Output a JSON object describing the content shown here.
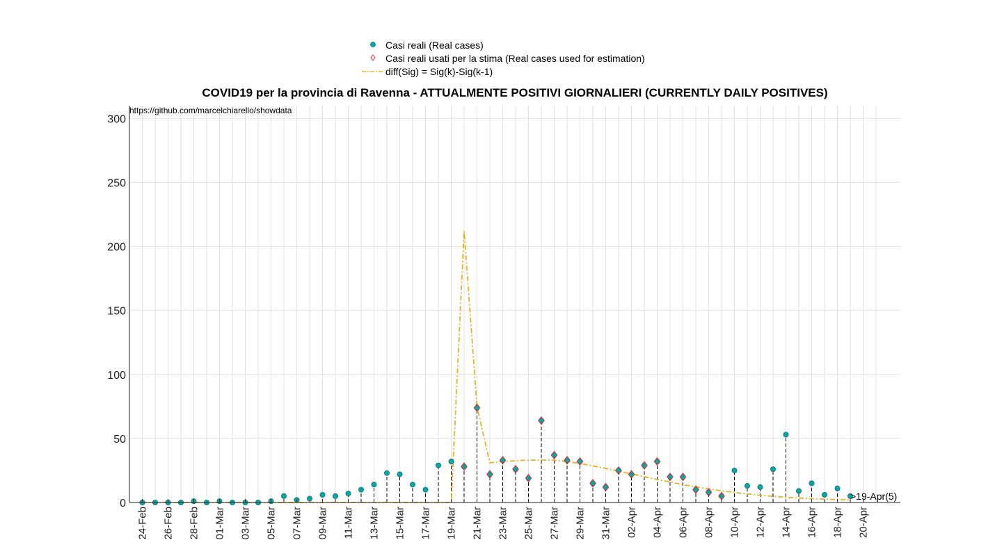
{
  "title": "COVID19 per la provincia di Ravenna - ATTUALMENTE POSITIVI GIORNALIERI (CURRENTLY DAILY POSITIVES)",
  "source_text": "https://github.com/marcelchiarello/showdata",
  "end_annotation": ">19-Apr(5)",
  "legend": {
    "real": "Casi reali (Real cases)",
    "used": "Casi reali usati per la stima (Real cases used for estimation)",
    "diff": "diff(Sig) = Sig(k)-Sig(k-1)"
  },
  "colors": {
    "real_marker": "#0aa5a5",
    "used_marker": "#e23030",
    "diff_line": "#e8b020",
    "grid": "#e2e2e2",
    "stem": "#000000"
  },
  "chart_data": {
    "type": "scatter",
    "ylim": [
      0,
      310
    ],
    "yticks": [
      0,
      50,
      100,
      150,
      200,
      250,
      300
    ],
    "grid": true,
    "legend_placement": "top-center",
    "xtick_labels": [
      "24-Feb",
      "26-Feb",
      "28-Feb",
      "01-Mar",
      "03-Mar",
      "05-Mar",
      "07-Mar",
      "09-Mar",
      "11-Mar",
      "13-Mar",
      "15-Mar",
      "17-Mar",
      "19-Mar",
      "21-Mar",
      "23-Mar",
      "25-Mar",
      "27-Mar",
      "29-Mar",
      "31-Mar",
      "02-Apr",
      "04-Apr",
      "06-Apr",
      "08-Apr",
      "10-Apr",
      "12-Apr",
      "14-Apr",
      "16-Apr",
      "18-Apr",
      "20-Apr"
    ],
    "dates": [
      "24-Feb",
      "25-Feb",
      "26-Feb",
      "27-Feb",
      "28-Feb",
      "29-Feb",
      "01-Mar",
      "02-Mar",
      "03-Mar",
      "04-Mar",
      "05-Mar",
      "06-Mar",
      "07-Mar",
      "08-Mar",
      "09-Mar",
      "10-Mar",
      "11-Mar",
      "12-Mar",
      "13-Mar",
      "14-Mar",
      "15-Mar",
      "16-Mar",
      "17-Mar",
      "18-Mar",
      "19-Mar",
      "20-Mar",
      "21-Mar",
      "22-Mar",
      "23-Mar",
      "24-Mar",
      "25-Mar",
      "26-Mar",
      "27-Mar",
      "28-Mar",
      "29-Mar",
      "30-Mar",
      "31-Mar",
      "01-Apr",
      "02-Apr",
      "03-Apr",
      "04-Apr",
      "05-Apr",
      "06-Apr",
      "07-Apr",
      "08-Apr",
      "09-Apr",
      "10-Apr",
      "11-Apr",
      "12-Apr",
      "13-Apr",
      "14-Apr",
      "15-Apr",
      "16-Apr",
      "17-Apr",
      "18-Apr",
      "19-Apr"
    ],
    "series": [
      {
        "name": "Casi reali (Real cases)",
        "values": [
          0,
          0,
          0,
          0,
          1,
          0,
          1,
          0,
          0,
          0,
          1,
          5,
          2,
          3,
          6,
          5,
          7,
          10,
          14,
          23,
          22,
          14,
          10,
          29,
          32,
          28,
          74,
          22,
          33,
          26,
          19,
          64,
          37,
          33,
          32,
          15,
          12,
          25,
          22,
          29,
          32,
          20,
          20,
          10,
          8,
          5,
          25,
          13,
          12,
          26,
          53,
          9,
          15,
          6,
          11,
          5
        ]
      },
      {
        "name": "Casi reali usati per la stima (Real cases used for estimation)",
        "dates": [
          "20-Mar",
          "21-Mar",
          "22-Mar",
          "23-Mar",
          "24-Mar",
          "25-Mar",
          "26-Mar",
          "27-Mar",
          "28-Mar",
          "29-Mar",
          "30-Mar",
          "31-Mar",
          "01-Apr",
          "02-Apr",
          "03-Apr",
          "04-Apr",
          "05-Apr",
          "06-Apr",
          "07-Apr",
          "08-Apr",
          "09-Apr"
        ],
        "values": [
          28,
          74,
          22,
          33,
          26,
          19,
          64,
          37,
          33,
          32,
          15,
          12,
          25,
          22,
          29,
          32,
          20,
          20,
          10,
          8,
          5
        ]
      },
      {
        "name": "diff(Sig) = Sig(k)-Sig(k-1)",
        "x_days": [
          0,
          24,
          25,
          26,
          27,
          28,
          29,
          30,
          31,
          32,
          33,
          34,
          35,
          36,
          37,
          38,
          39,
          40,
          41,
          42,
          43,
          44,
          45,
          46,
          47,
          48,
          49,
          50,
          51,
          52,
          53,
          54,
          55
        ],
        "values": [
          0,
          0,
          212,
          75,
          31,
          32,
          32.7,
          33,
          33.2,
          33,
          32,
          30.5,
          28.6,
          26.6,
          24.5,
          22.3,
          20.1,
          18,
          16,
          14,
          12.2,
          10.6,
          9.1,
          7.8,
          6.7,
          5.7,
          4.8,
          4.1,
          3.5,
          3,
          2.6,
          2.2,
          2
        ]
      }
    ]
  }
}
